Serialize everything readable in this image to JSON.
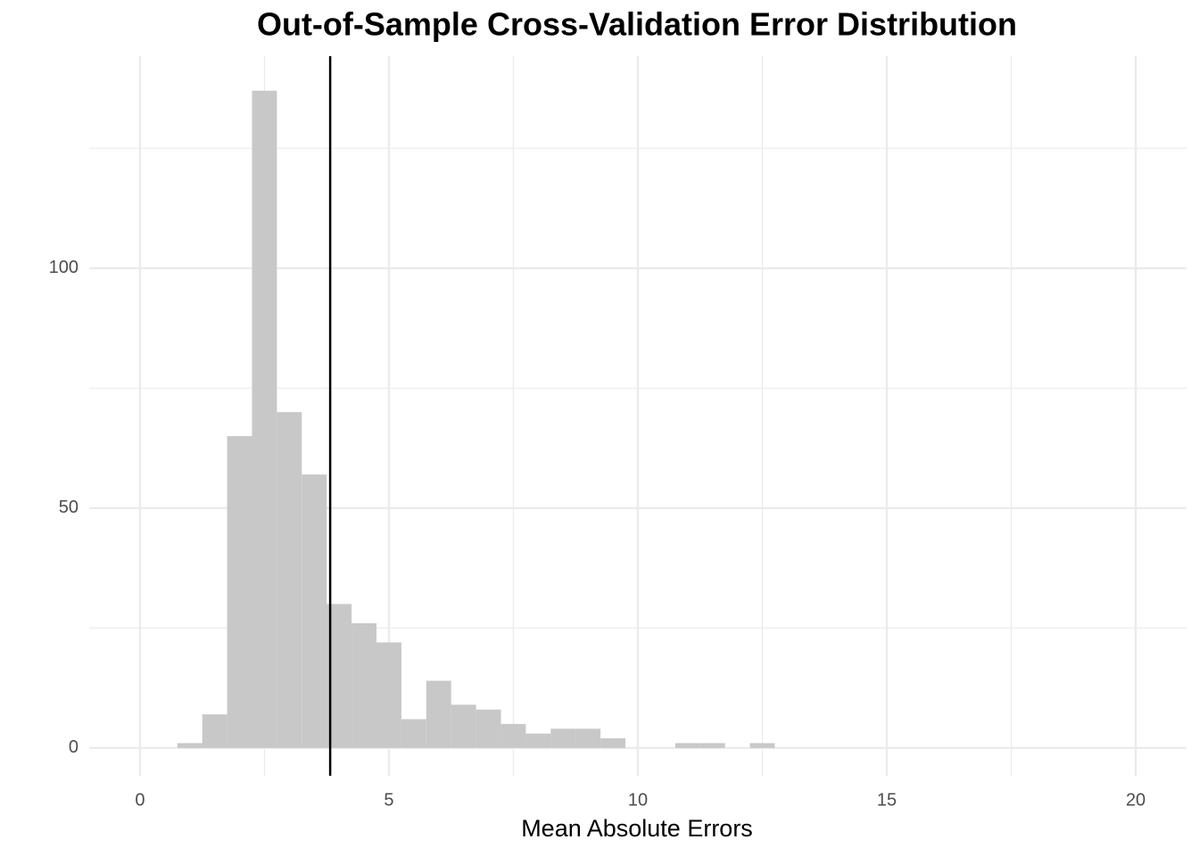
{
  "chart_data": {
    "type": "histogram",
    "title": "Out-of-Sample Cross-Validation Error Distribution",
    "x_label": "Mean Absolute Errors",
    "bins": [
      0.75,
      1.25,
      1.75,
      2.25,
      2.75,
      3.25,
      3.75,
      4.25,
      4.75,
      5.25,
      5.75,
      6.25,
      6.75,
      7.25,
      7.75,
      8.25,
      8.75,
      9.25,
      9.75,
      10.25,
      10.75,
      11.25,
      11.75,
      12.25,
      12.75
    ],
    "values": [
      1,
      7,
      65,
      137,
      70,
      57,
      30,
      26,
      22,
      6,
      14,
      9,
      8,
      5,
      3,
      4,
      4,
      2,
      0,
      0,
      1,
      1,
      0,
      1
    ],
    "color": "#c8c8c8",
    "vline": 3.82,
    "vline_color": "#000000",
    "xlim": [
      -1.02,
      21.02
    ],
    "ylim": [
      -5.8,
      144.2
    ],
    "xticks": [
      0,
      5,
      10,
      15,
      20
    ],
    "yticks": [
      0,
      50,
      100
    ],
    "xminor": [
      2.5,
      7.5,
      12.5,
      17.5
    ],
    "yminor": [
      25,
      75,
      125
    ],
    "grid": true
  }
}
